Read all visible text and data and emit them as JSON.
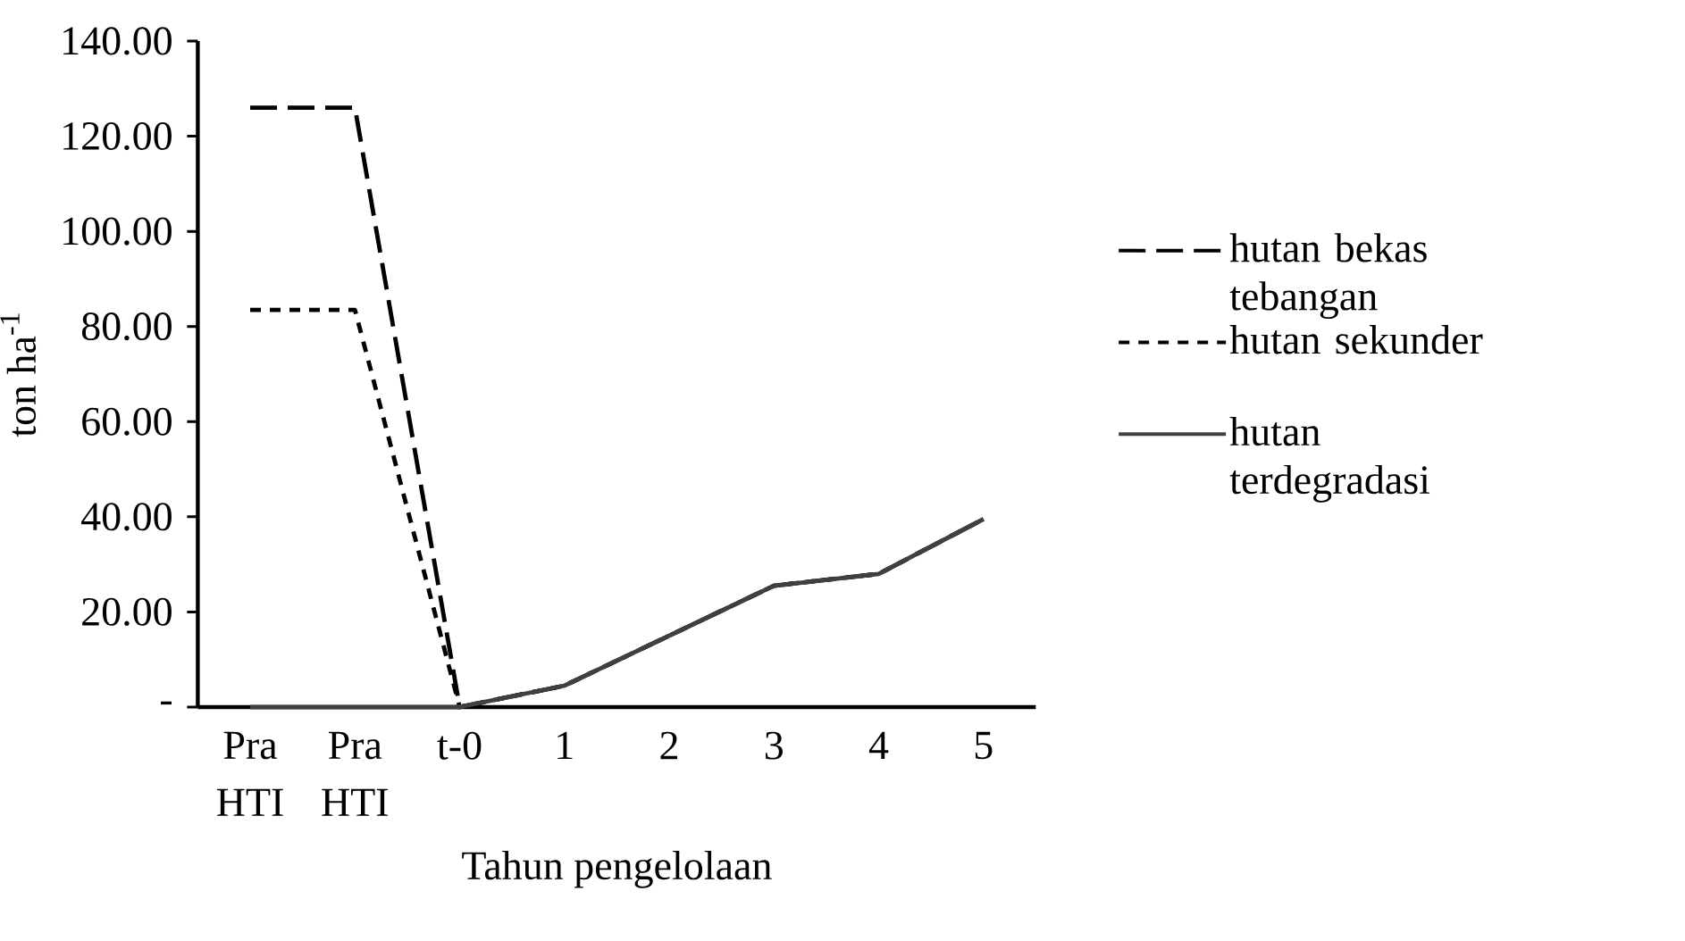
{
  "chart_data": {
    "type": "line",
    "xlabel": "Tahun pengelolaan",
    "ylabel": "ton ha$^{-1}$",
    "categories": [
      "Pra HTI",
      "Pra HTI",
      "t-0",
      "1",
      "2",
      "3",
      "4",
      "5"
    ],
    "ylim": [
      0,
      140
    ],
    "yticks": [
      {
        "value": 0,
        "label": "-"
      },
      {
        "value": 20,
        "label": "20.00"
      },
      {
        "value": 40,
        "label": "40.00"
      },
      {
        "value": 60,
        "label": "60.00"
      },
      {
        "value": 80,
        "label": "80.00"
      },
      {
        "value": 100,
        "label": "100.00"
      },
      {
        "value": 120,
        "label": "120.00"
      },
      {
        "value": 140,
        "label": "140.00"
      }
    ],
    "legend": "right",
    "grid": false,
    "series": [
      {
        "name": "hutan bekas tebangan",
        "color": "#000000",
        "line_style": "dashed",
        "values": [
          126,
          126,
          0,
          4.5,
          15,
          25.5,
          28,
          39.5
        ]
      },
      {
        "name": "hutan sekunder",
        "color": "#000000",
        "line_style": "dotted",
        "values": [
          83.5,
          83.5,
          0,
          4.5,
          15,
          25.5,
          28,
          39.5
        ]
      },
      {
        "name": "hutan terdegradasi",
        "color": "#404040",
        "line_style": "solid",
        "values": [
          0,
          0,
          0,
          4.5,
          15,
          25.5,
          28,
          39.5
        ]
      }
    ]
  }
}
